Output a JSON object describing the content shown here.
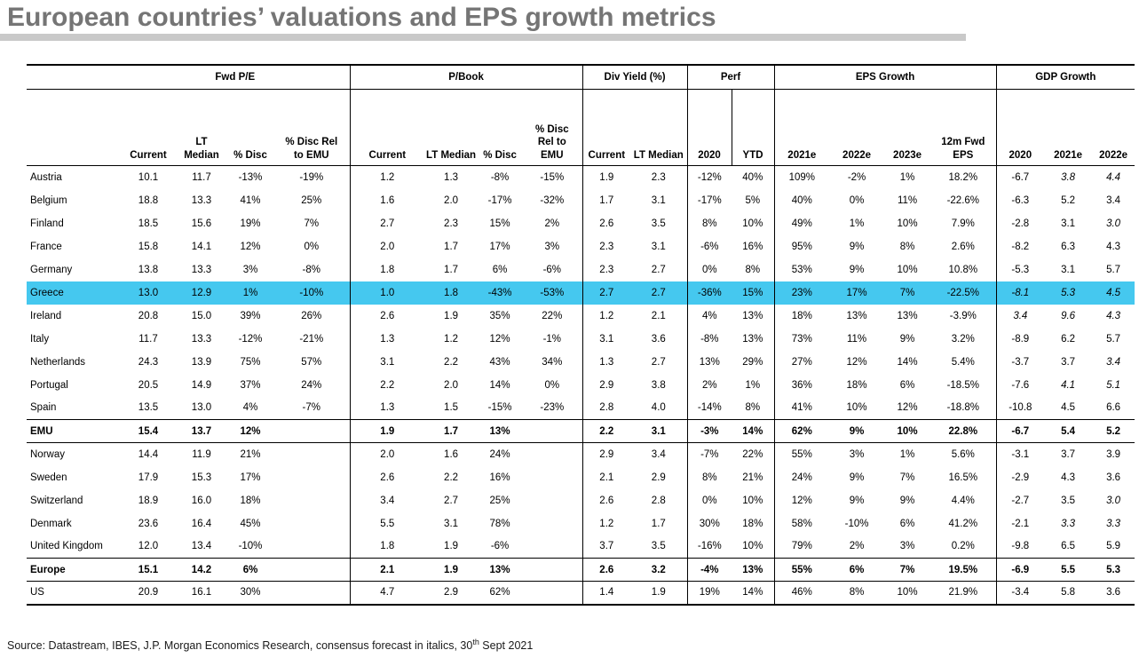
{
  "title": "European countries’ valuations and EPS growth metrics",
  "colors": {
    "highlight_row": "#45c8ef",
    "title_gray": "#757575",
    "title_rule_gray": "#c9c9c9"
  },
  "source": {
    "prefix": "Source: Datastream, IBES, J.P. Morgan Economics Research, consensus forecast in italics, 30",
    "sup": "th",
    "suffix": " Sept 2021"
  },
  "table": {
    "groups": [
      {
        "label": "Fwd P/E",
        "span": 4
      },
      {
        "label": "P/Book",
        "span": 4
      },
      {
        "label": "Div Yield (%)",
        "span": 2
      },
      {
        "label": "Perf",
        "span": 2
      },
      {
        "label": "EPS Growth",
        "span": 4
      },
      {
        "label": "GDP Growth",
        "span": 3
      }
    ],
    "subheaders": [
      "Current",
      "LT\nMedian",
      "% Disc",
      "% Disc Rel\nto EMU",
      "Current",
      "LT Median",
      "% Disc",
      "% Disc\nRel to\nEMU",
      "Current",
      "LT Median",
      "2020",
      "YTD",
      "2021e",
      "2022e",
      "2023e",
      "12m Fwd\nEPS",
      "2020",
      "2021e",
      "2022e"
    ],
    "rows": [
      {
        "name": "Austria",
        "values": [
          "10.1",
          "11.7",
          "-13%",
          "-19%",
          "1.2",
          "1.3",
          "-8%",
          "-15%",
          "1.9",
          "2.3",
          "-12%",
          "40%",
          "109%",
          "-2%",
          "1%",
          "18.2%",
          "-6.7",
          "3.8",
          "4.4"
        ],
        "italic_gdp": [
          false,
          true,
          true
        ]
      },
      {
        "name": "Belgium",
        "values": [
          "18.8",
          "13.3",
          "41%",
          "25%",
          "1.6",
          "2.0",
          "-17%",
          "-32%",
          "1.7",
          "3.1",
          "-17%",
          "5%",
          "40%",
          "0%",
          "11%",
          "-22.6%",
          "-6.3",
          "5.2",
          "3.4"
        ]
      },
      {
        "name": "Finland",
        "values": [
          "18.5",
          "15.6",
          "19%",
          "7%",
          "2.7",
          "2.3",
          "15%",
          "2%",
          "2.6",
          "3.5",
          "8%",
          "10%",
          "49%",
          "1%",
          "10%",
          "7.9%",
          "-2.8",
          "3.1",
          "3.0"
        ],
        "italic_gdp": [
          false,
          false,
          true
        ]
      },
      {
        "name": "France",
        "values": [
          "15.8",
          "14.1",
          "12%",
          "0%",
          "2.0",
          "1.7",
          "17%",
          "3%",
          "2.3",
          "3.1",
          "-6%",
          "16%",
          "95%",
          "9%",
          "8%",
          "2.6%",
          "-8.2",
          "6.3",
          "4.3"
        ]
      },
      {
        "name": "Germany",
        "values": [
          "13.8",
          "13.3",
          "3%",
          "-8%",
          "1.8",
          "1.7",
          "6%",
          "-6%",
          "2.3",
          "2.7",
          "0%",
          "8%",
          "53%",
          "9%",
          "10%",
          "10.8%",
          "-5.3",
          "3.1",
          "5.7"
        ]
      },
      {
        "name": "Greece",
        "values": [
          "13.0",
          "12.9",
          "1%",
          "-10%",
          "1.0",
          "1.8",
          "-43%",
          "-53%",
          "2.7",
          "2.7",
          "-36%",
          "15%",
          "23%",
          "17%",
          "7%",
          "-22.5%",
          "-8.1",
          "5.3",
          "4.5"
        ],
        "highlight": true,
        "italic_gdp": [
          true,
          true,
          true
        ]
      },
      {
        "name": "Ireland",
        "values": [
          "20.8",
          "15.0",
          "39%",
          "26%",
          "2.6",
          "1.9",
          "35%",
          "22%",
          "1.2",
          "2.1",
          "4%",
          "13%",
          "18%",
          "13%",
          "13%",
          "-3.9%",
          "3.4",
          "9.6",
          "4.3"
        ],
        "italic_gdp": [
          true,
          true,
          true
        ]
      },
      {
        "name": "Italy",
        "values": [
          "11.7",
          "13.3",
          "-12%",
          "-21%",
          "1.3",
          "1.2",
          "12%",
          "-1%",
          "3.1",
          "3.6",
          "-8%",
          "13%",
          "73%",
          "11%",
          "9%",
          "3.2%",
          "-8.9",
          "6.2",
          "5.7"
        ]
      },
      {
        "name": "Netherlands",
        "values": [
          "24.3",
          "13.9",
          "75%",
          "57%",
          "3.1",
          "2.2",
          "43%",
          "34%",
          "1.3",
          "2.7",
          "13%",
          "29%",
          "27%",
          "12%",
          "14%",
          "5.4%",
          "-3.7",
          "3.7",
          "3.4"
        ],
        "italic_gdp": [
          false,
          false,
          true
        ]
      },
      {
        "name": "Portugal",
        "values": [
          "20.5",
          "14.9",
          "37%",
          "24%",
          "2.2",
          "2.0",
          "14%",
          "0%",
          "2.9",
          "3.8",
          "2%",
          "1%",
          "36%",
          "18%",
          "6%",
          "-18.5%",
          "-7.6",
          "4.1",
          "5.1"
        ],
        "italic_gdp": [
          false,
          true,
          true
        ]
      },
      {
        "name": "Spain",
        "values": [
          "13.5",
          "13.0",
          "4%",
          "-7%",
          "1.3",
          "1.5",
          "-15%",
          "-23%",
          "2.8",
          "4.0",
          "-14%",
          "8%",
          "41%",
          "10%",
          "12%",
          "-18.8%",
          "-10.8",
          "4.5",
          "6.6"
        ]
      },
      {
        "name": "EMU",
        "values": [
          "15.4",
          "13.7",
          "12%",
          "",
          "1.9",
          "1.7",
          "13%",
          "",
          "2.2",
          "3.1",
          "-3%",
          "14%",
          "62%",
          "9%",
          "10%",
          "22.8%",
          "-6.7",
          "5.4",
          "5.2"
        ],
        "bold": true
      },
      {
        "name": "Norway",
        "values": [
          "14.4",
          "11.9",
          "21%",
          "",
          "2.0",
          "1.6",
          "24%",
          "",
          "2.9",
          "3.4",
          "-7%",
          "22%",
          "55%",
          "3%",
          "1%",
          "5.6%",
          "-3.1",
          "3.7",
          "3.9"
        ]
      },
      {
        "name": "Sweden",
        "values": [
          "17.9",
          "15.3",
          "17%",
          "",
          "2.6",
          "2.2",
          "16%",
          "",
          "2.1",
          "2.9",
          "8%",
          "21%",
          "24%",
          "9%",
          "7%",
          "16.5%",
          "-2.9",
          "4.3",
          "3.6"
        ]
      },
      {
        "name": "Switzerland",
        "values": [
          "18.9",
          "16.0",
          "18%",
          "",
          "3.4",
          "2.7",
          "25%",
          "",
          "2.6",
          "2.8",
          "0%",
          "10%",
          "12%",
          "9%",
          "9%",
          "4.4%",
          "-2.7",
          "3.5",
          "3.0"
        ],
        "italic_gdp": [
          false,
          false,
          true
        ]
      },
      {
        "name": "Denmark",
        "values": [
          "23.6",
          "16.4",
          "45%",
          "",
          "5.5",
          "3.1",
          "78%",
          "",
          "1.2",
          "1.7",
          "30%",
          "18%",
          "58%",
          "-10%",
          "6%",
          "41.2%",
          "-2.1",
          "3.3",
          "3.3"
        ],
        "italic_gdp": [
          false,
          true,
          true
        ]
      },
      {
        "name": "United Kingdom",
        "values": [
          "12.0",
          "13.4",
          "-10%",
          "",
          "1.8",
          "1.9",
          "-6%",
          "",
          "3.7",
          "3.5",
          "-16%",
          "10%",
          "79%",
          "2%",
          "3%",
          "0.2%",
          "-9.8",
          "6.5",
          "5.9"
        ]
      },
      {
        "name": "Europe",
        "values": [
          "15.1",
          "14.2",
          "6%",
          "",
          "2.1",
          "1.9",
          "13%",
          "",
          "2.6",
          "3.2",
          "-4%",
          "13%",
          "55%",
          "6%",
          "7%",
          "19.5%",
          "-6.9",
          "5.5",
          "5.3"
        ],
        "bold": true
      },
      {
        "name": "US",
        "values": [
          "20.9",
          "16.1",
          "30%",
          "",
          "4.7",
          "2.9",
          "62%",
          "",
          "1.4",
          "1.9",
          "19%",
          "14%",
          "46%",
          "8%",
          "10%",
          "21.9%",
          "-3.4",
          "5.8",
          "3.6"
        ]
      }
    ]
  }
}
